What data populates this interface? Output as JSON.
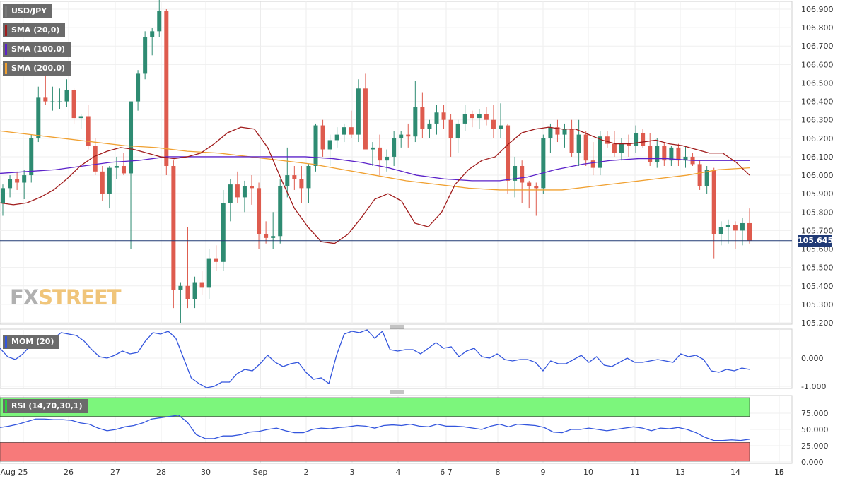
{
  "legend": {
    "symbol": "USD/JPY",
    "sma20": "SMA (20,0)",
    "sma100": "SMA (100,0)",
    "sma200": "SMA (200,0)",
    "mom": "MOM (20)",
    "rsi": "RSI (14,70,30,1)"
  },
  "watermark": {
    "part1": "FX",
    "part2": "STREET"
  },
  "last_price": "105.645",
  "colors": {
    "up": "#2e8b72",
    "down": "#de5b4e",
    "sma20": "#a01b1b",
    "sma100": "#5b22c9",
    "sma200": "#f0a030",
    "momentum": "#3355dd",
    "rsi_line": "#3355dd",
    "rsi_overbought": "#7cf67c",
    "rsi_oversold": "#f77a7a",
    "last_price_line": "#203a75"
  },
  "chart_data": [
    {
      "type": "candlestick",
      "title": "USD/JPY",
      "ylim": [
        105.2,
        106.95
      ],
      "y_ticks": [
        "106.900",
        "106.800",
        "106.700",
        "106.600",
        "106.500",
        "106.400",
        "106.300",
        "106.200",
        "106.100",
        "106.000",
        "105.900",
        "105.800",
        "105.700",
        "105.600",
        "105.500",
        "105.400",
        "105.300",
        "105.200"
      ],
      "x_ticks": [
        "Aug 25",
        "26",
        "27",
        "28",
        "30",
        "Sep",
        "2",
        "3",
        "4",
        "6 7",
        "8",
        "9",
        "10",
        "11",
        "13",
        "14",
        "15",
        "16"
      ],
      "candles": [
        [
          105.85,
          105.95,
          105.78,
          105.93
        ],
        [
          105.93,
          106.0,
          105.88,
          105.98
        ],
        [
          105.98,
          106.02,
          105.92,
          105.96
        ],
        [
          105.96,
          106.03,
          105.87,
          106.0
        ],
        [
          106.0,
          106.22,
          105.96,
          106.2
        ],
        [
          106.2,
          106.48,
          106.18,
          106.42
        ],
        [
          106.42,
          106.57,
          106.38,
          106.4
        ],
        [
          106.4,
          106.48,
          106.35,
          106.4
        ],
        [
          106.4,
          106.47,
          106.36,
          106.4
        ],
        [
          106.4,
          106.52,
          106.37,
          106.46
        ],
        [
          106.46,
          106.47,
          106.28,
          106.31
        ],
        [
          106.31,
          106.33,
          106.25,
          106.32
        ],
        [
          106.32,
          106.38,
          106.14,
          106.16
        ],
        [
          106.16,
          106.2,
          106.0,
          106.02
        ],
        [
          106.02,
          106.05,
          105.86,
          105.9
        ],
        [
          105.9,
          106.05,
          105.82,
          106.04
        ],
        [
          106.04,
          106.1,
          105.98,
          106.05
        ],
        [
          106.05,
          106.12,
          106.0,
          106.01
        ],
        [
          106.01,
          106.4,
          105.6,
          106.4
        ],
        [
          106.4,
          106.57,
          106.35,
          106.55
        ],
        [
          106.55,
          106.78,
          106.52,
          106.75
        ],
        [
          106.75,
          106.8,
          106.65,
          106.78
        ],
        [
          106.78,
          106.95,
          106.75,
          106.89
        ],
        [
          106.89,
          106.9,
          106.0,
          106.05
        ],
        [
          106.05,
          106.08,
          105.28,
          105.38
        ],
        [
          105.38,
          105.42,
          105.2,
          105.4
        ],
        [
          105.4,
          105.72,
          105.28,
          105.33
        ],
        [
          105.33,
          105.45,
          105.28,
          105.42
        ],
        [
          105.42,
          105.48,
          105.35,
          105.39
        ],
        [
          105.39,
          105.6,
          105.33,
          105.55
        ],
        [
          105.55,
          105.62,
          105.48,
          105.53
        ],
        [
          105.53,
          105.92,
          105.48,
          105.85
        ],
        [
          105.85,
          105.98,
          105.75,
          105.95
        ],
        [
          105.95,
          106.02,
          105.85,
          105.88
        ],
        [
          105.88,
          105.97,
          105.8,
          105.94
        ],
        [
          105.94,
          106.0,
          105.84,
          105.93
        ],
        [
          105.93,
          105.96,
          105.6,
          105.68
        ],
        [
          105.68,
          105.75,
          105.63,
          105.66
        ],
        [
          105.66,
          105.8,
          105.6,
          105.67
        ],
        [
          105.67,
          105.98,
          105.63,
          105.94
        ],
        [
          105.94,
          106.15,
          105.88,
          106.0
        ],
        [
          106.0,
          106.05,
          105.92,
          105.98
        ],
        [
          105.98,
          106.05,
          105.85,
          105.93
        ],
        [
          105.93,
          106.06,
          105.85,
          106.05
        ],
        [
          106.05,
          106.28,
          106.02,
          106.27
        ],
        [
          106.27,
          106.3,
          106.1,
          106.14
        ],
        [
          106.14,
          106.22,
          106.05,
          106.19
        ],
        [
          106.19,
          106.26,
          106.15,
          106.22
        ],
        [
          106.22,
          106.28,
          106.18,
          106.26
        ],
        [
          106.26,
          106.35,
          106.2,
          106.22
        ],
        [
          106.22,
          106.52,
          106.18,
          106.47
        ],
        [
          106.47,
          106.55,
          106.15,
          106.14
        ],
        [
          106.14,
          106.18,
          106.05,
          106.15
        ],
        [
          106.15,
          106.22,
          106.0,
          106.08
        ],
        [
          106.08,
          106.14,
          106.02,
          106.1
        ],
        [
          106.1,
          106.24,
          106.05,
          106.2
        ],
        [
          106.2,
          106.24,
          106.15,
          106.22
        ],
        [
          106.22,
          106.28,
          106.15,
          106.21
        ],
        [
          106.21,
          106.51,
          106.18,
          106.37
        ],
        [
          106.37,
          106.45,
          106.2,
          106.25
        ],
        [
          106.25,
          106.3,
          106.2,
          106.28
        ],
        [
          106.28,
          106.38,
          106.22,
          106.34
        ],
        [
          106.34,
          106.38,
          106.25,
          106.3
        ],
        [
          106.3,
          106.33,
          106.1,
          106.2
        ],
        [
          106.2,
          106.3,
          106.12,
          106.28
        ],
        [
          106.28,
          106.38,
          106.24,
          106.33
        ],
        [
          106.33,
          106.35,
          106.26,
          106.31
        ],
        [
          106.31,
          106.36,
          106.25,
          106.33
        ],
        [
          106.33,
          106.37,
          106.27,
          106.3
        ],
        [
          106.3,
          106.38,
          106.2,
          106.25
        ],
        [
          106.25,
          106.39,
          106.2,
          106.27
        ],
        [
          106.27,
          106.28,
          105.9,
          105.97
        ],
        [
          105.97,
          106.1,
          105.88,
          106.05
        ],
        [
          106.05,
          106.08,
          105.85,
          105.96
        ],
        [
          105.96,
          105.97,
          105.82,
          105.94
        ],
        [
          105.94,
          105.96,
          105.78,
          105.93
        ],
        [
          105.93,
          106.22,
          105.9,
          106.2
        ],
        [
          106.2,
          106.28,
          106.12,
          106.26
        ],
        [
          106.26,
          106.3,
          106.18,
          106.22
        ],
        [
          106.22,
          106.28,
          106.15,
          106.25
        ],
        [
          106.25,
          106.3,
          106.1,
          106.12
        ],
        [
          106.12,
          106.3,
          106.05,
          106.22
        ],
        [
          106.22,
          106.24,
          106.05,
          106.08
        ],
        [
          106.08,
          106.18,
          106.0,
          106.04
        ],
        [
          106.04,
          106.24,
          106.0,
          106.21
        ],
        [
          106.21,
          106.24,
          106.15,
          106.17
        ],
        [
          106.17,
          106.24,
          106.1,
          106.12
        ],
        [
          106.12,
          106.2,
          106.08,
          106.17
        ],
        [
          106.17,
          106.22,
          106.1,
          106.16
        ],
        [
          106.16,
          106.27,
          106.12,
          106.23
        ],
        [
          106.23,
          106.25,
          106.15,
          106.16
        ],
        [
          106.16,
          106.23,
          106.05,
          106.07
        ],
        [
          106.07,
          106.2,
          106.04,
          106.16
        ],
        [
          106.16,
          106.18,
          106.05,
          106.08
        ],
        [
          106.08,
          106.16,
          106.05,
          106.15
        ],
        [
          106.15,
          106.17,
          106.05,
          106.08
        ],
        [
          106.08,
          106.16,
          106.04,
          106.1
        ],
        [
          106.1,
          106.12,
          106.05,
          106.06
        ],
        [
          106.06,
          106.08,
          105.92,
          105.94
        ],
        [
          105.94,
          106.05,
          105.9,
          106.03
        ],
        [
          106.03,
          106.04,
          105.55,
          105.68
        ],
        [
          105.68,
          105.75,
          105.62,
          105.72
        ],
        [
          105.72,
          105.76,
          105.63,
          105.73
        ],
        [
          105.73,
          105.75,
          105.6,
          105.7
        ],
        [
          105.7,
          105.77,
          105.62,
          105.74
        ],
        [
          105.74,
          105.82,
          105.63,
          105.645
        ]
      ],
      "series": [
        {
          "name": "SMA (20,0)",
          "values": [
            105.85,
            105.84,
            105.85,
            105.88,
            105.92,
            105.98,
            106.05,
            106.1,
            106.13,
            106.15,
            106.14,
            106.12,
            106.1,
            106.09,
            106.1,
            106.12,
            106.17,
            106.23,
            106.26,
            106.25,
            106.15,
            105.98,
            105.82,
            105.72,
            105.64,
            105.63,
            105.68,
            105.77,
            105.87,
            105.9,
            105.86,
            105.74,
            105.72,
            105.8,
            105.95,
            106.03,
            106.08,
            106.1,
            106.17,
            106.23,
            106.25,
            106.26,
            106.25,
            106.25,
            106.22,
            106.19,
            106.17,
            106.17,
            106.18,
            106.19,
            106.17,
            106.16,
            106.14,
            106.12,
            106.12,
            106.07,
            106.0
          ]
        },
        {
          "name": "SMA (100,0)",
          "values": [
            106.01,
            106.02,
            106.03,
            106.05,
            106.07,
            106.08,
            106.1,
            106.1,
            106.1,
            106.1,
            106.1,
            106.1,
            106.09,
            106.07,
            106.04,
            106.0,
            105.98,
            105.97,
            105.97,
            105.99,
            106.03,
            106.06,
            106.08,
            106.09,
            106.09,
            106.08,
            106.08,
            106.08
          ]
        },
        {
          "name": "SMA (200,0)",
          "values": [
            106.24,
            106.22,
            106.2,
            106.18,
            106.16,
            106.15,
            106.13,
            106.12,
            106.1,
            106.08,
            106.06,
            106.03,
            106.0,
            105.97,
            105.95,
            105.93,
            105.92,
            105.92,
            105.92,
            105.94,
            105.96,
            105.98,
            106.0,
            106.03,
            106.04
          ]
        }
      ]
    },
    {
      "type": "line",
      "title": "MOM (20)",
      "ylim": [
        -1.1,
        1.1
      ],
      "y_ticks": [
        "0.000",
        "-1.000"
      ],
      "series": [
        {
          "name": "MOM (20)",
          "values": [
            0.35,
            0.05,
            -0.05,
            0.15,
            0.45,
            0.7,
            0.8,
            0.7,
            0.9,
            0.85,
            0.8,
            0.6,
            0.3,
            0.05,
            0.0,
            0.1,
            0.25,
            0.15,
            0.2,
            0.6,
            0.9,
            0.85,
            0.95,
            0.7,
            0.0,
            -0.7,
            -0.9,
            -1.05,
            -1.0,
            -0.85,
            -0.85,
            -0.55,
            -0.4,
            -0.45,
            -0.2,
            0.1,
            -0.15,
            -0.3,
            -0.2,
            -0.15,
            -0.5,
            -0.75,
            -0.7,
            -0.9,
            0.1,
            0.85,
            0.95,
            0.9,
            1.0,
            0.7,
            0.95,
            0.3,
            0.25,
            0.3,
            0.3,
            0.15,
            0.35,
            0.55,
            0.35,
            0.4,
            0.05,
            0.25,
            0.35,
            0.05,
            0.0,
            0.15,
            -0.05,
            -0.1,
            -0.05,
            -0.05,
            -0.15,
            -0.45,
            -0.1,
            -0.2,
            -0.2,
            -0.05,
            0.1,
            -0.15,
            0.05,
            -0.25,
            -0.3,
            -0.15,
            0.0,
            -0.15,
            -0.15,
            -0.1,
            -0.05,
            -0.1,
            -0.15,
            0.15,
            0.05,
            0.1,
            -0.05,
            -0.45,
            -0.5,
            -0.4,
            -0.45,
            -0.35,
            -0.4
          ]
        }
      ]
    },
    {
      "type": "line",
      "title": "RSI (14,70,30,1)",
      "ylim": [
        0,
        100
      ],
      "overbought": 70,
      "oversold": 30,
      "y_ticks": [
        "75.000",
        "50.000",
        "25.000",
        "0.000"
      ],
      "series": [
        {
          "name": "RSI (14,70,30,1)",
          "values": [
            53,
            55,
            58,
            62,
            66,
            66,
            65,
            65,
            64,
            60,
            58,
            52,
            48,
            50,
            54,
            56,
            60,
            66,
            68,
            70,
            72,
            61,
            42,
            36,
            36,
            40,
            40,
            42,
            46,
            47,
            50,
            52,
            48,
            45,
            45,
            50,
            52,
            51,
            53,
            54,
            56,
            55,
            52,
            56,
            57,
            56,
            58,
            55,
            54,
            58,
            55,
            55,
            54,
            52,
            50,
            55,
            58,
            54,
            58,
            57,
            56,
            53,
            46,
            45,
            50,
            50,
            52,
            50,
            48,
            50,
            52,
            54,
            52,
            48,
            52,
            51,
            53,
            50,
            45,
            38,
            33,
            33,
            34,
            33,
            35
          ]
        }
      ]
    }
  ]
}
